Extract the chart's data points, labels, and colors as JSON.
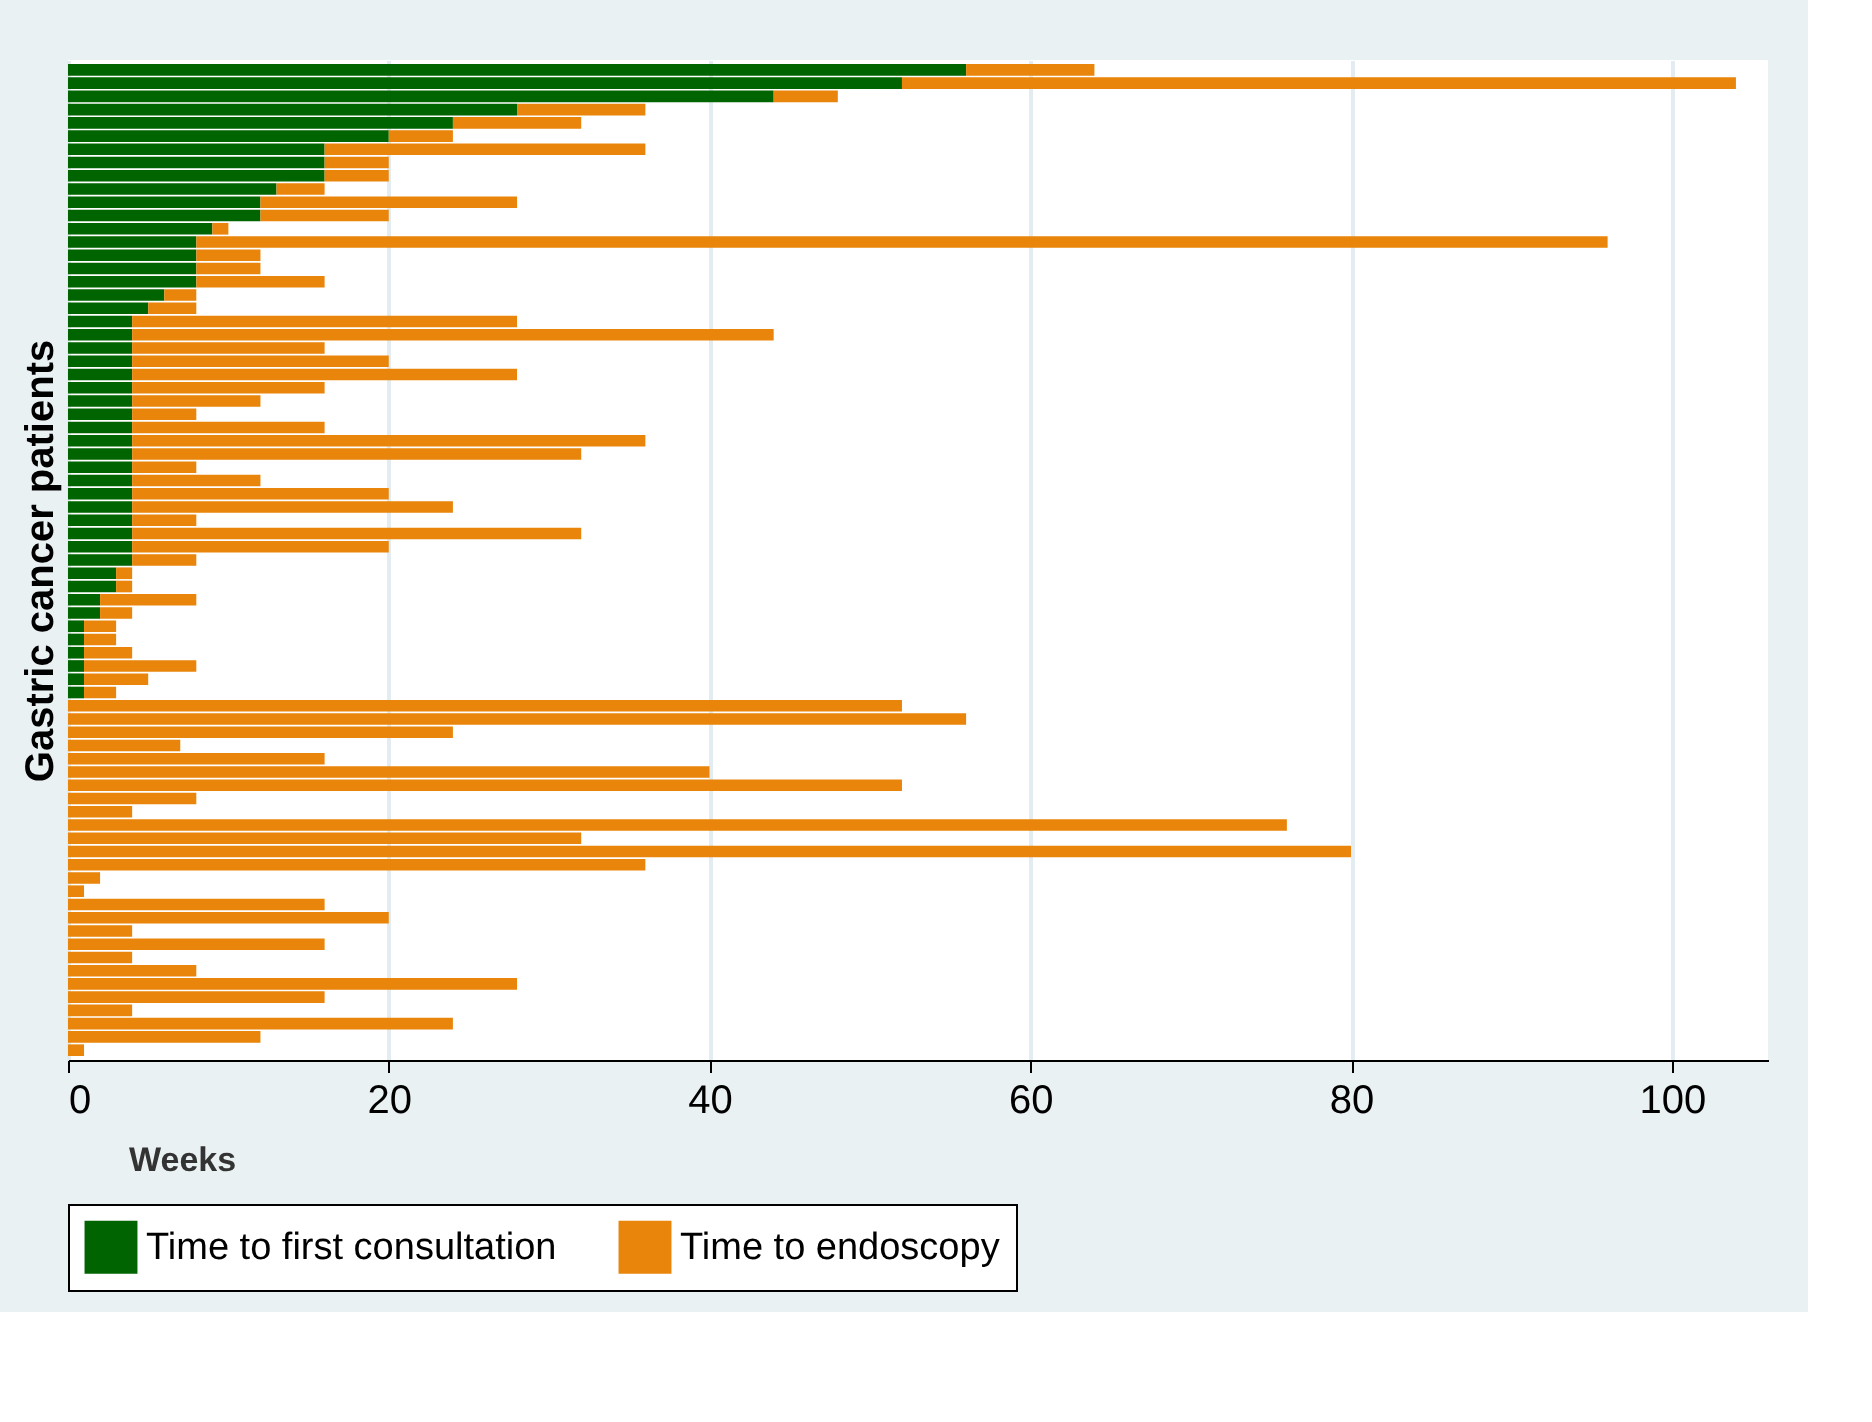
{
  "chart_data": {
    "type": "bar",
    "orientation": "horizontal",
    "stacked": true,
    "xlabel": "Weeks",
    "ylabel": "Gastric cancer patients",
    "categories": [
      null,
      null,
      null,
      null,
      null,
      null,
      null,
      null,
      null,
      null,
      null,
      null,
      null,
      null,
      null,
      null,
      null,
      null,
      null,
      null,
      null,
      null,
      null,
      null,
      null,
      null,
      null,
      null,
      null,
      null,
      null,
      null,
      null,
      null,
      null,
      null,
      null,
      null,
      null,
      null,
      null,
      null,
      null,
      null,
      null,
      null,
      null,
      null,
      null,
      null,
      null,
      null,
      null,
      null,
      null,
      null,
      null,
      null,
      null,
      null,
      null,
      null,
      null,
      null,
      null,
      null,
      null,
      null,
      null,
      null,
      null,
      null,
      null,
      null,
      null
    ],
    "series": [
      {
        "name": "Time to first consultation",
        "color": "#006400",
        "values": [
          56,
          52,
          44,
          28,
          24,
          20,
          16,
          16,
          16,
          13,
          12,
          12,
          9,
          8,
          8,
          8,
          8,
          6,
          5,
          4,
          4,
          4,
          4,
          4,
          4,
          4,
          4,
          4,
          4,
          4,
          4,
          4,
          4,
          4,
          4,
          4,
          4,
          4,
          3,
          3,
          2,
          2,
          1,
          1,
          1,
          1,
          1,
          1,
          null,
          null,
          null,
          null,
          null,
          null,
          null,
          null,
          null,
          null,
          null,
          null,
          null,
          null,
          null,
          null,
          null,
          null,
          null,
          null,
          null,
          null,
          null,
          null,
          null,
          null,
          null
        ]
      },
      {
        "name": "Time to endoscopy",
        "color": "#e8850a",
        "values": [
          8,
          52,
          4,
          8,
          8,
          4,
          20,
          4,
          4,
          3,
          16,
          8,
          1,
          88,
          4,
          4,
          8,
          2,
          3,
          24,
          40,
          12,
          16,
          24,
          12,
          8,
          4,
          12,
          32,
          28,
          4,
          8,
          16,
          20,
          4,
          28,
          16,
          4,
          1,
          1,
          6,
          2,
          2,
          2,
          3,
          7,
          4,
          2,
          52,
          56,
          24,
          7,
          16,
          40,
          52,
          8,
          4,
          76,
          32,
          80,
          36,
          2,
          1,
          16,
          20,
          4,
          16,
          4,
          8,
          28,
          16,
          4,
          24,
          12,
          1
        ]
      }
    ],
    "xlim": [
      0,
      106
    ],
    "xticks": [
      0,
      20,
      40,
      60,
      80,
      100
    ],
    "grid": "x",
    "legend": "bottom"
  }
}
